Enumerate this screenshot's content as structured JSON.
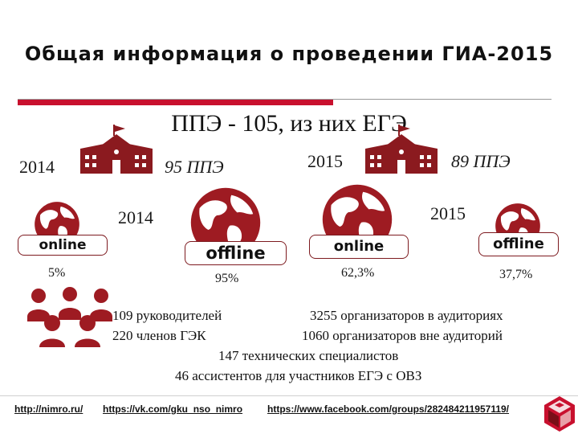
{
  "slide": {
    "title": "Общая информация о проведении ГИА-2015",
    "subtitle": "ППЭ - 105, из них ЕГЭ",
    "year_2014_top": "2014",
    "ppe_2014": "95 ППЭ",
    "year_2015_top": "2015",
    "ppe_2015": "89 ППЭ",
    "year_2014_mid": "2014",
    "year_2015_mid": "2015",
    "globes": [
      {
        "label": "online",
        "pct": "5%"
      },
      {
        "label": "offline",
        "pct": "95%"
      },
      {
        "label": "online",
        "pct": "62,3%"
      },
      {
        "label": "offline",
        "pct": "37,7%"
      }
    ],
    "staff": {
      "heads": "109 руководителей",
      "gek": "220 членов ГЭК",
      "organizers_in": "3255 организаторов в аудиториях",
      "organizers_out": "1060 организаторов вне аудиторий",
      "tech": "147 технических специалистов",
      "assistants": "46 ассистентов для участников ЕГЭ с ОВЗ"
    },
    "footer_links": [
      "http://nimro.ru/",
      "https://vk.com/gku_nso_nimro",
      "https://www.facebook.com/groups/282484211957119/"
    ]
  },
  "colors": {
    "accent": "#c8102e",
    "dark_red": "#8b1a1f",
    "ocean": "#9e1b22"
  },
  "icons": [
    "school-building-icon",
    "globe-icon",
    "people-group-icon",
    "logo-icon"
  ]
}
